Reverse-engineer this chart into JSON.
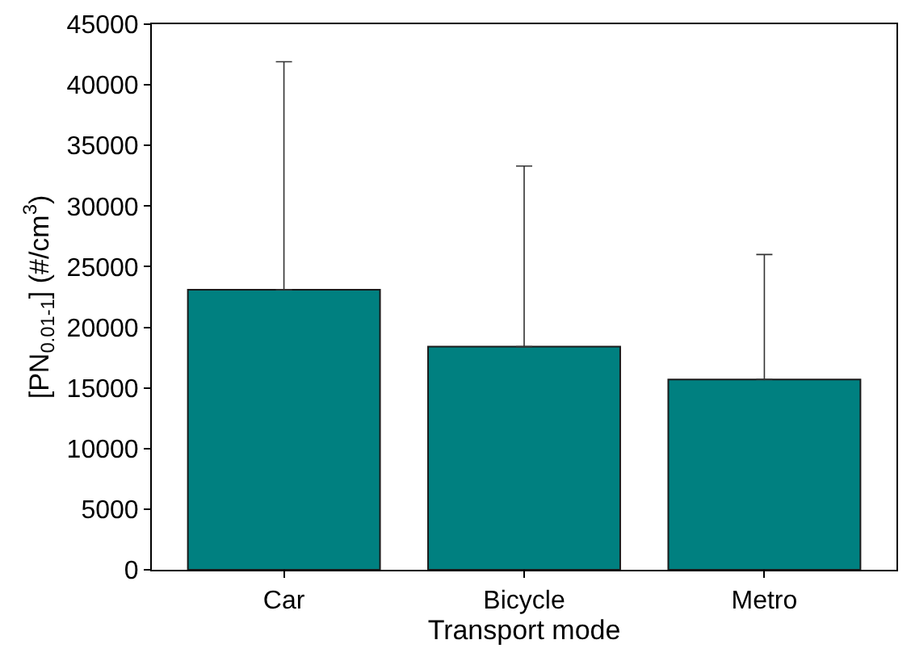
{
  "chart_data": {
    "type": "bar",
    "xlabel": "Transport mode",
    "ylabel": "[PN$_{0.01-1}$] (#/cm$^{3}$)",
    "categories": [
      "Car",
      "Bicycle",
      "Metro"
    ],
    "values": [
      23100,
      18400,
      15700
    ],
    "errors": [
      [
        23100,
        41900
      ],
      [
        18400,
        33300
      ],
      [
        15700,
        26000
      ]
    ],
    "color": "#008080",
    "ylim": [
      0,
      45000
    ],
    "yticks": [
      0,
      5000,
      10000,
      15000,
      20000,
      25000,
      30000,
      35000,
      40000,
      45000
    ]
  }
}
